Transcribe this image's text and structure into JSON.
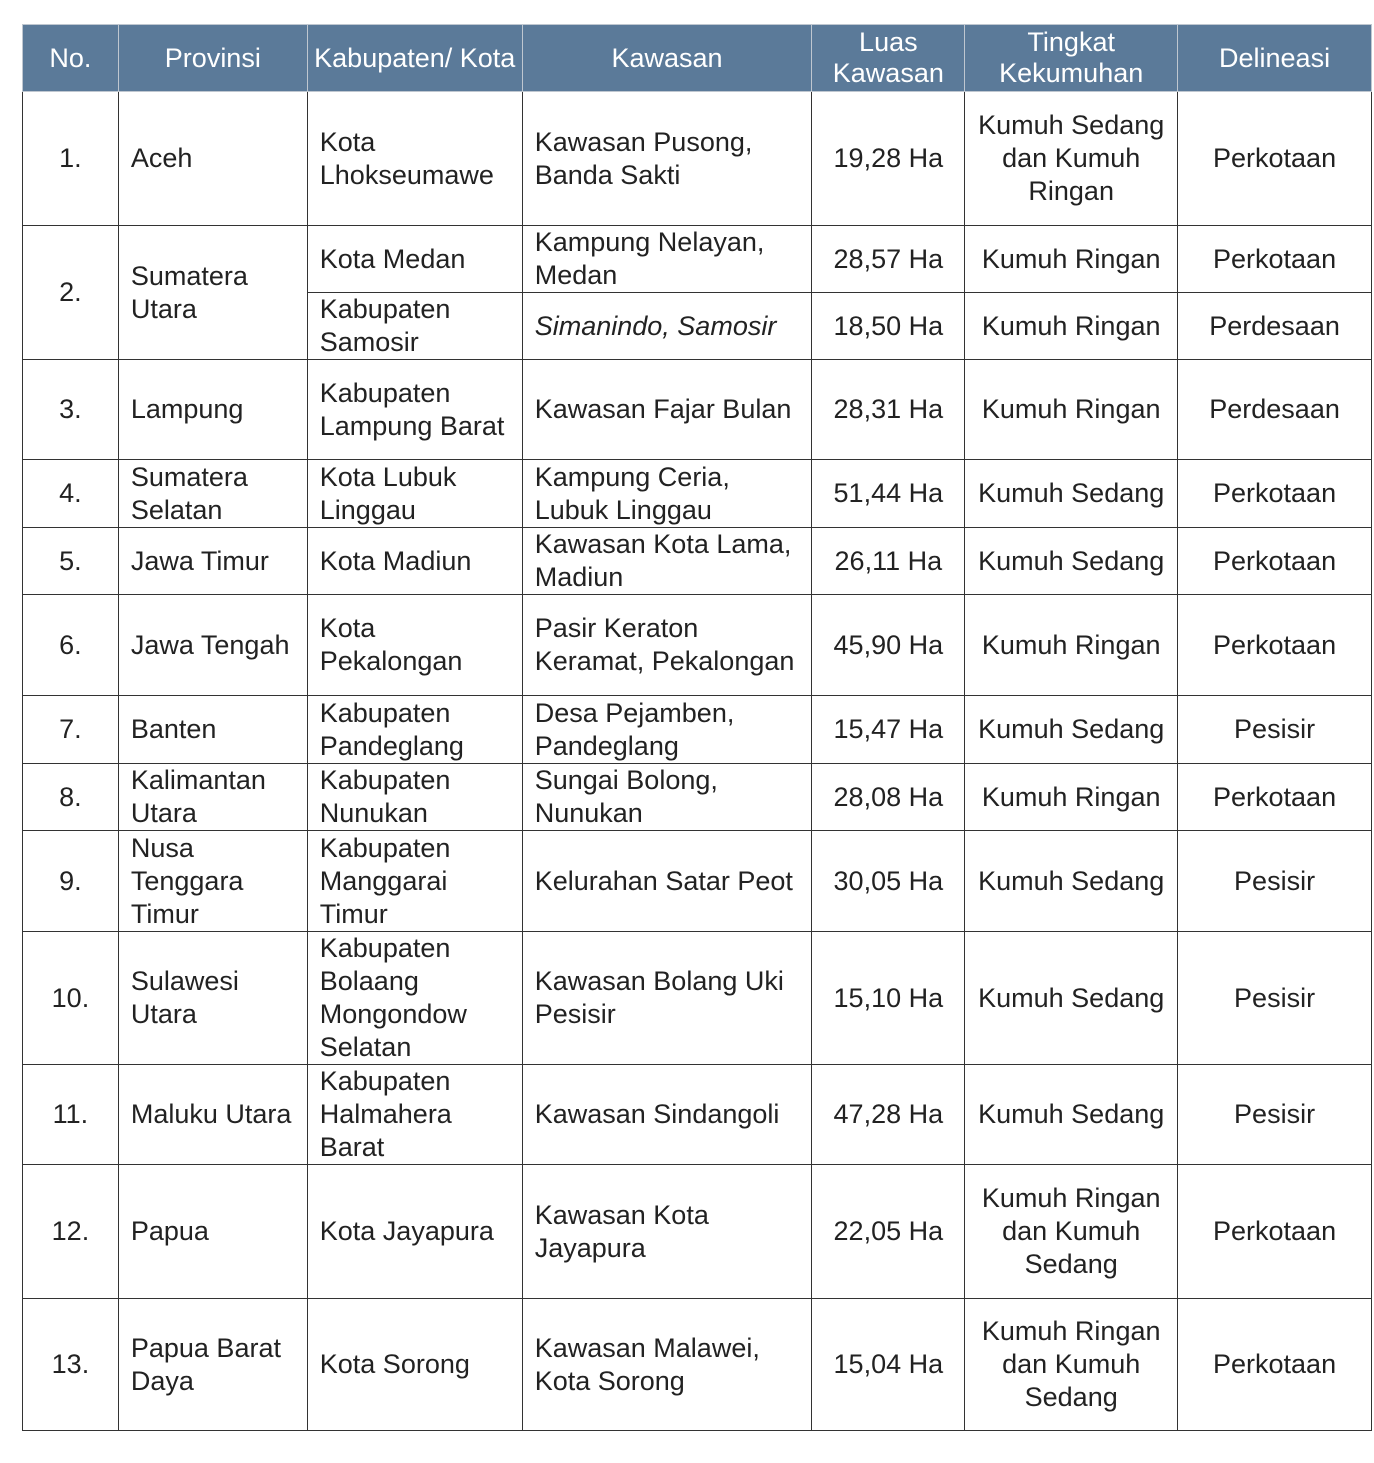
{
  "table": {
    "headers": [
      "No.",
      "Provinsi",
      "Kabupaten/ Kota",
      "Kawasan",
      "Luas Kawasan",
      "Tingkat Kekumuhan",
      "Delineasi"
    ],
    "rows": [
      {
        "no": "1.",
        "provinsi": "Aceh",
        "kabkota": "Kota Lhokseumawe",
        "kawasan": "Kawasan Pusong, Banda Sakti",
        "luas": "19,28 Ha",
        "tingkat": "Kumuh Sedang dan Kumuh Ringan",
        "delineasi": "Perkotaan"
      },
      {
        "no": "2.",
        "provinsi": "Sumatera Utara",
        "kabkota": "Kota Medan",
        "kawasan": "Kampung Nelayan, Medan",
        "luas": "28,57 Ha",
        "tingkat": "Kumuh Ringan",
        "delineasi": "Perkotaan"
      },
      {
        "kabkota": "Kabupaten Samosir",
        "kawasan": "Simanindo, Samosir",
        "luas": "18,50 Ha",
        "tingkat": "Kumuh Ringan",
        "delineasi": "Perdesaan"
      },
      {
        "no": "3.",
        "provinsi": "Lampung",
        "kabkota": "Kabupaten Lampung Barat",
        "kawasan": "Kawasan Fajar Bulan",
        "luas": "28,31 Ha",
        "tingkat": "Kumuh Ringan",
        "delineasi": "Perdesaan"
      },
      {
        "no": "4.",
        "provinsi": "Sumatera Selatan",
        "kabkota": "Kota Lubuk Linggau",
        "kawasan": "Kampung Ceria, Lubuk Linggau",
        "luas": "51,44 Ha",
        "tingkat": "Kumuh Sedang",
        "delineasi": "Perkotaan"
      },
      {
        "no": "5.",
        "provinsi": "Jawa Timur",
        "kabkota": "Kota Madiun",
        "kawasan": "Kawasan Kota Lama, Madiun",
        "luas": "26,11 Ha",
        "tingkat": "Kumuh Sedang",
        "delineasi": "Perkotaan"
      },
      {
        "no": "6.",
        "provinsi": "Jawa Tengah",
        "kabkota": "Kota Pekalongan",
        "kawasan": "Pasir Keraton Keramat, Pekalongan",
        "luas": "45,90 Ha",
        "tingkat": "Kumuh Ringan",
        "delineasi": "Perkotaan"
      },
      {
        "no": "7.",
        "provinsi": "Banten",
        "kabkota": "Kabupaten Pandeglang",
        "kawasan": "Desa Pejamben, Pandeglang",
        "luas": "15,47 Ha",
        "tingkat": "Kumuh Sedang",
        "delineasi": "Pesisir"
      },
      {
        "no": "8.",
        "provinsi": "Kalimantan Utara",
        "kabkota": "Kabupaten Nunukan",
        "kawasan": "Sungai Bolong, Nunukan",
        "luas": "28,08 Ha",
        "tingkat": "Kumuh Ringan",
        "delineasi": "Perkotaan"
      },
      {
        "no": "9.",
        "provinsi": "Nusa Tenggara Timur",
        "kabkota": "Kabupaten Manggarai Timur",
        "kawasan": "Kelurahan Satar Peot",
        "luas": "30,05 Ha",
        "tingkat": "Kumuh Sedang",
        "delineasi": "Pesisir"
      },
      {
        "no": "10.",
        "provinsi": "Sulawesi Utara",
        "kabkota": "Kabupaten Bolaang Mongondow Selatan",
        "kawasan": "Kawasan Bolang Uki Pesisir",
        "luas": "15,10 Ha",
        "tingkat": "Kumuh Sedang",
        "delineasi": "Pesisir"
      },
      {
        "no": "11.",
        "provinsi": "Maluku Utara",
        "kabkota": "Kabupaten Halmahera Barat",
        "kawasan": "Kawasan Sindangoli",
        "luas": "47,28 Ha",
        "tingkat": "Kumuh Sedang",
        "delineasi": "Pesisir"
      },
      {
        "no": "12.",
        "provinsi": "Papua",
        "kabkota": "Kota Jayapura",
        "kawasan": "Kawasan Kota Jayapura",
        "luas": "22,05 Ha",
        "tingkat": "Kumuh Ringan dan Kumuh Sedang",
        "delineasi": "Perkotaan"
      },
      {
        "no": "13.",
        "provinsi": "Papua Barat Daya",
        "kabkota": "Kota Sorong",
        "kawasan": "Kawasan Malawei, Kota Sorong",
        "luas": "15,04 Ha",
        "tingkat": "Kumuh Ringan dan Kumuh Sedang",
        "delineasi": "Perkotaan"
      }
    ]
  },
  "colors": {
    "header_bg": "#5b7a99",
    "header_text": "#ffffff"
  }
}
